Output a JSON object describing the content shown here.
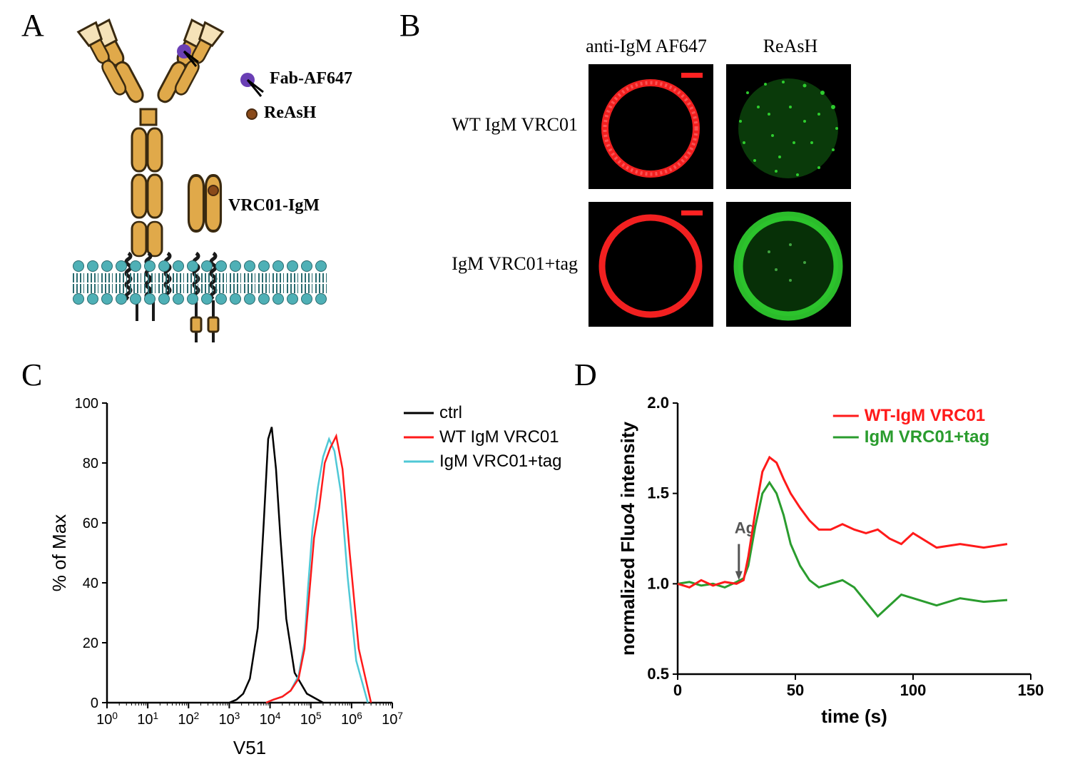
{
  "panels": {
    "A": {
      "label": "A"
    },
    "B": {
      "label": "B"
    },
    "C": {
      "label": "C"
    },
    "D": {
      "label": "D"
    }
  },
  "diagramA": {
    "label_fab": "Fab-AF647",
    "label_reash": "ReAsH",
    "label_vrc01": "VRC01-IgM",
    "antibody_fill": "#e0a94a",
    "antibody_stroke": "#3a2a10",
    "membrane_head": "#4fb0b6",
    "membrane_stroke": "#2a6b6f",
    "fab_dot": "#6a3fb5",
    "reash_dot": "#8a4a1a"
  },
  "panelB": {
    "col1_header": "anti-IgM AF647",
    "col2_header": "ReAsH",
    "row1_label": "WT IgM VRC01",
    "row2_label": "IgM VRC01+tag",
    "scalebar_color": "#ff2222",
    "red_channel": "#ff2222",
    "green_channel": "#33dd33"
  },
  "chartC": {
    "type": "histogram",
    "xlabel": "V51",
    "ylabel": "% of Max",
    "xscale": "log",
    "xlim": [
      1,
      10000000.0
    ],
    "ylim": [
      0,
      100
    ],
    "ytick_step": 20,
    "xticks": [
      1,
      10,
      100,
      1000,
      10000,
      100000,
      1000000,
      10000000
    ],
    "xticklabels": [
      "10^0",
      "10^1",
      "10^2",
      "10^3",
      "10^4",
      "10^5",
      "10^6",
      "10^7"
    ],
    "background_color": "#ffffff",
    "axis_color": "#000000",
    "label_fontsize": 26,
    "tick_fontsize": 20,
    "line_width": 2.5,
    "legend": {
      "items": [
        "ctrl",
        "WT IgM VRC01",
        "IgM VRC01+tag"
      ],
      "colors": [
        "#000000",
        "#ff1a1a",
        "#4fc8d6"
      ],
      "fontsize": 24
    },
    "series": {
      "ctrl": {
        "color": "#000000",
        "x": [
          1000,
          1500,
          2200,
          3200,
          5000,
          7000,
          9000,
          11000,
          14000,
          18000,
          25000,
          40000,
          80000,
          200000
        ],
        "y": [
          0,
          1,
          3,
          8,
          25,
          60,
          88,
          92,
          78,
          55,
          28,
          10,
          3,
          0
        ]
      },
      "wt": {
        "color": "#ff1a1a",
        "x": [
          8000,
          12000,
          20000,
          32000,
          50000,
          70000,
          90000,
          120000,
          160000,
          220000,
          300000,
          420000,
          600000,
          900000,
          1500000,
          3000000
        ],
        "y": [
          0,
          1,
          2,
          4,
          8,
          18,
          35,
          55,
          65,
          80,
          85,
          89,
          78,
          50,
          18,
          0
        ]
      },
      "tag": {
        "color": "#4fc8d6",
        "x": [
          8000,
          12000,
          20000,
          32000,
          50000,
          70000,
          85000,
          110000,
          150000,
          200000,
          280000,
          380000,
          550000,
          800000,
          1300000,
          2500000
        ],
        "y": [
          0,
          1,
          2,
          4,
          9,
          20,
          38,
          58,
          72,
          82,
          88,
          84,
          70,
          42,
          14,
          0
        ]
      }
    }
  },
  "chartD": {
    "type": "line",
    "xlabel": "time (s)",
    "ylabel": "normalized Fluo4 intensity",
    "xlim": [
      0,
      150
    ],
    "ylim": [
      0.5,
      2.0
    ],
    "xtick_step": 50,
    "ytick_step": 0.5,
    "ag_marker": {
      "x": 26,
      "label": "Ag"
    },
    "label_fontsize": 26,
    "tick_fontsize": 22,
    "line_width": 3,
    "legend": {
      "items": [
        "WT-IgM VRC01",
        "IgM VRC01+tag"
      ],
      "colors": [
        "#ff1a1a",
        "#2a9c2e"
      ],
      "fontsize": 24
    },
    "series": {
      "wt": {
        "color": "#ff1a1a",
        "x": [
          0,
          5,
          10,
          15,
          20,
          25,
          28,
          30,
          33,
          36,
          39,
          42,
          45,
          48,
          52,
          56,
          60,
          65,
          70,
          75,
          80,
          85,
          90,
          95,
          100,
          110,
          120,
          130,
          140
        ],
        "y": [
          1.0,
          0.98,
          1.02,
          0.99,
          1.01,
          1.0,
          1.02,
          1.15,
          1.4,
          1.62,
          1.7,
          1.67,
          1.58,
          1.5,
          1.42,
          1.35,
          1.3,
          1.3,
          1.33,
          1.3,
          1.28,
          1.3,
          1.25,
          1.22,
          1.28,
          1.2,
          1.22,
          1.2,
          1.22
        ]
      },
      "tag": {
        "color": "#2a9c2e",
        "x": [
          0,
          5,
          10,
          15,
          20,
          25,
          28,
          30,
          33,
          36,
          39,
          42,
          45,
          48,
          52,
          56,
          60,
          65,
          70,
          75,
          80,
          85,
          90,
          95,
          100,
          110,
          120,
          130,
          140
        ],
        "y": [
          1.0,
          1.01,
          0.99,
          1.0,
          0.98,
          1.01,
          1.03,
          1.1,
          1.32,
          1.5,
          1.56,
          1.5,
          1.38,
          1.22,
          1.1,
          1.02,
          0.98,
          1.0,
          1.02,
          0.98,
          0.9,
          0.82,
          0.88,
          0.94,
          0.92,
          0.88,
          0.92,
          0.9,
          0.91
        ]
      }
    }
  }
}
